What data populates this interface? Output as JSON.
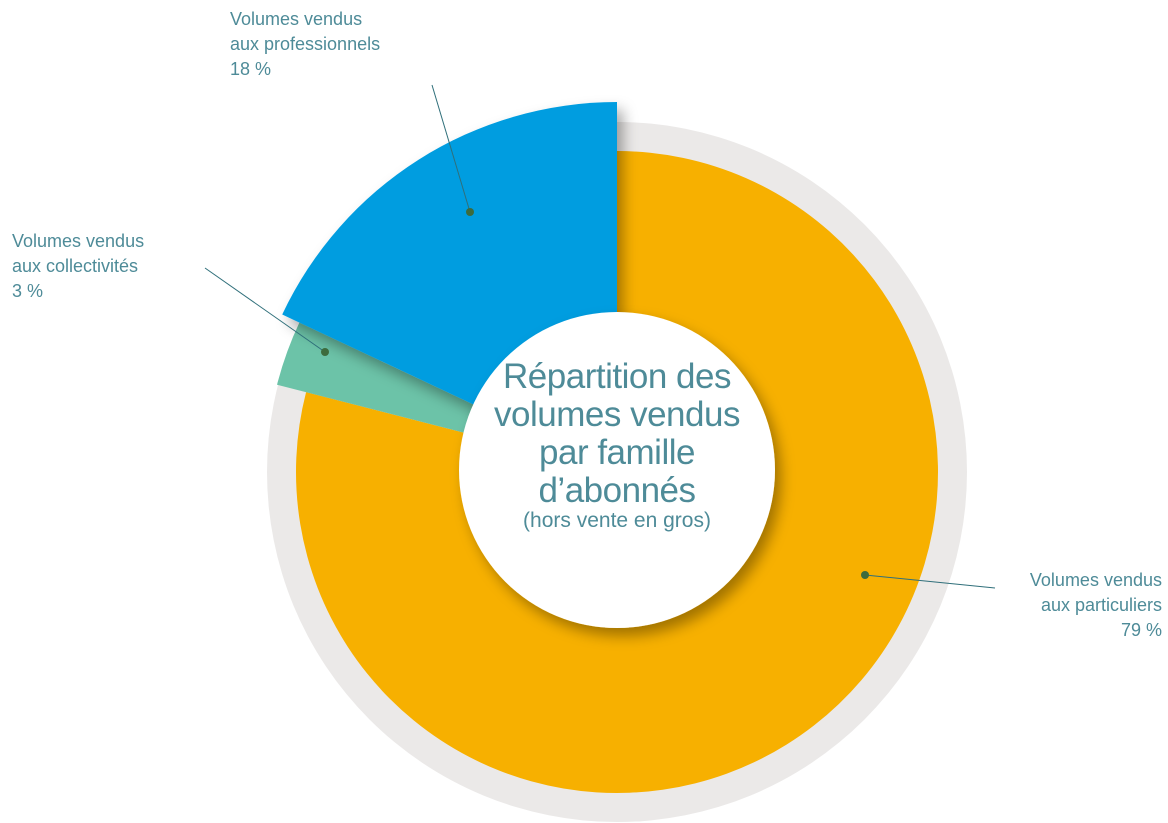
{
  "chart_data": {
    "type": "pie",
    "title": "Répartition des\nvolumes vendus\npar famille\nd’abonnés",
    "subtitle": "(hors vente en gros)",
    "categories": [
      "Volumes vendus\naux particuliers",
      "Volumes vendus\naux collectivités",
      "Volumes vendus\naux professionnels"
    ],
    "values": [
      79,
      3,
      18
    ],
    "value_labels": [
      "79 %",
      "3 %",
      "18 %"
    ],
    "colors": [
      "#f7b000",
      "#6cc3a8",
      "#009de0"
    ]
  }
}
